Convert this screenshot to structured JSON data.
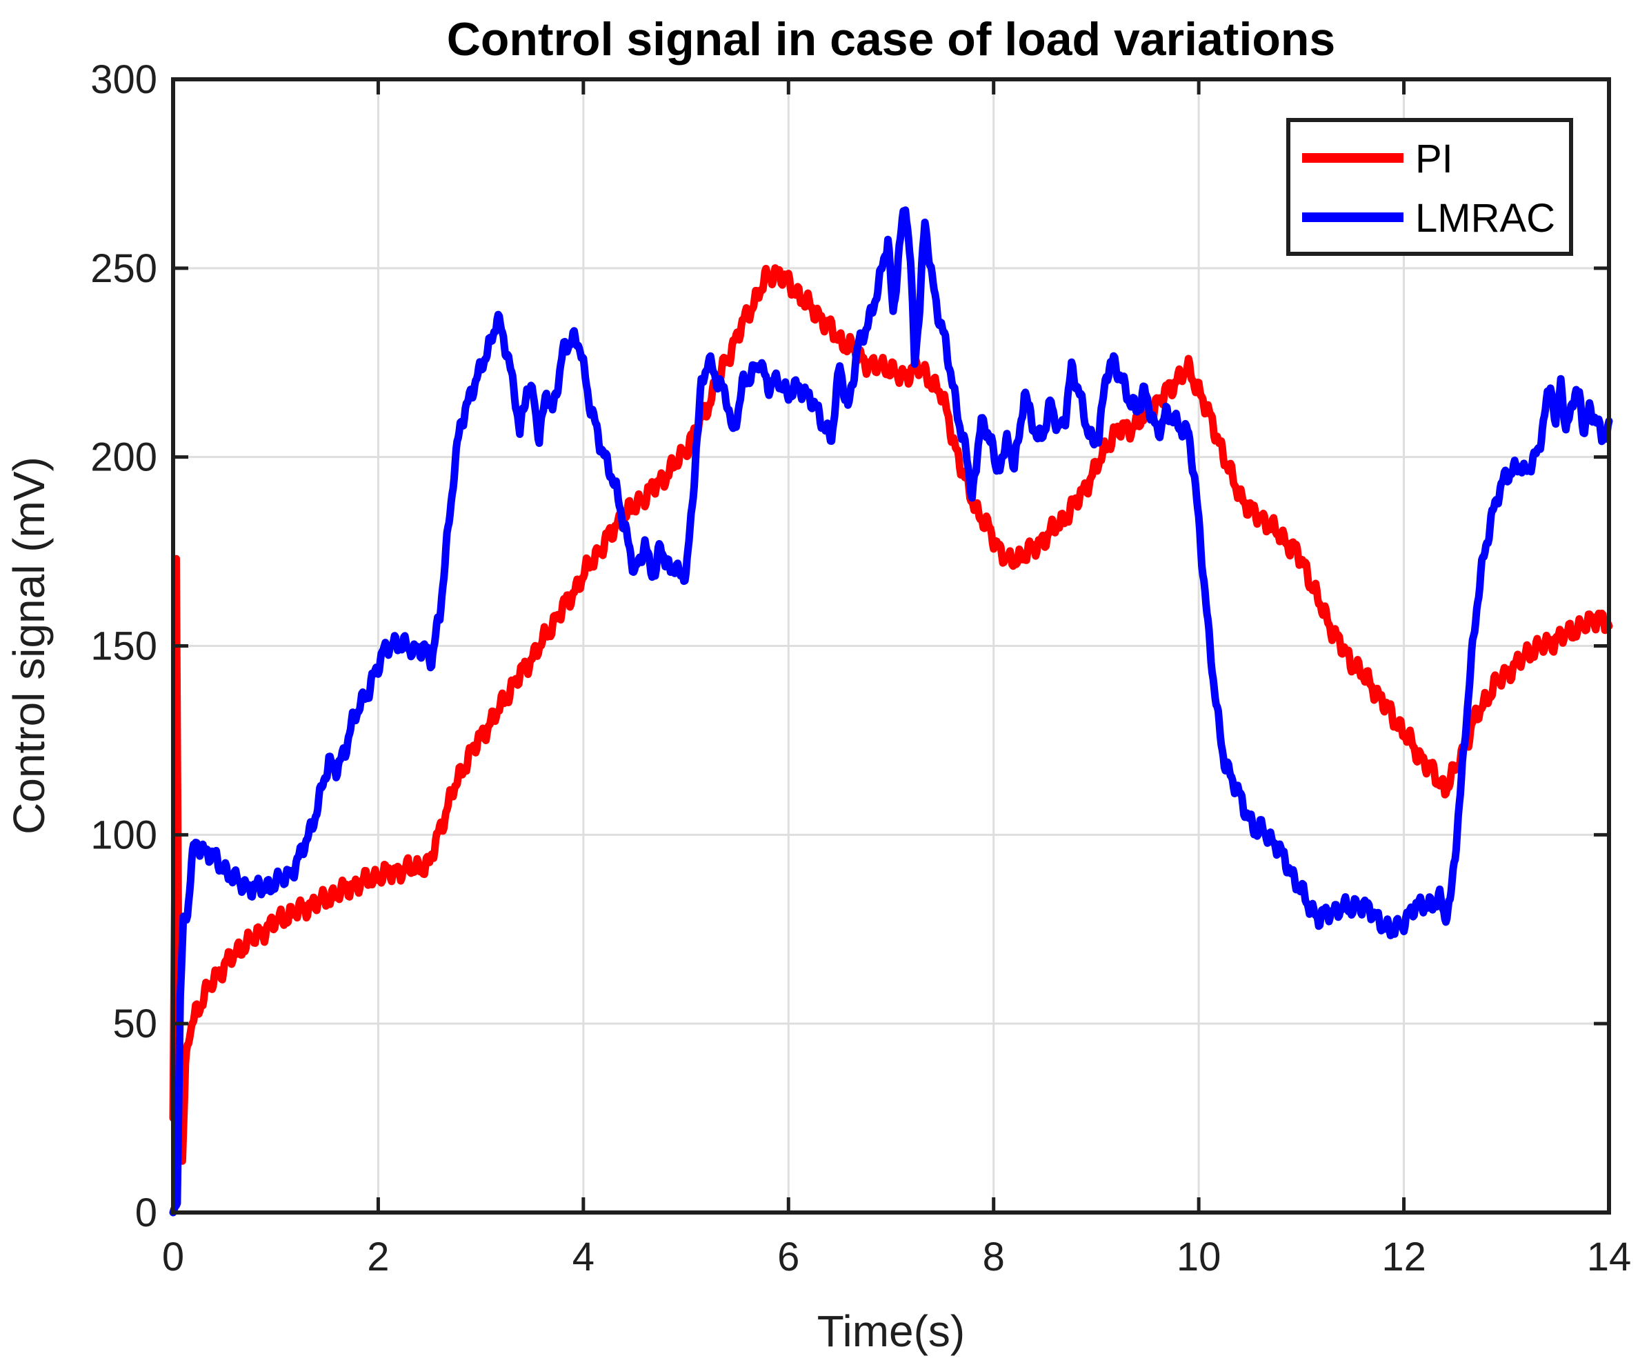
{
  "chart_data": {
    "type": "line",
    "title": "Control signal in case of load variations",
    "xlabel": "Time(s)",
    "ylabel": "Control signal (mV)",
    "xlim": [
      0,
      14
    ],
    "ylim": [
      0,
      300
    ],
    "xticks": [
      0,
      2,
      4,
      6,
      8,
      10,
      12,
      14
    ],
    "yticks": [
      0,
      50,
      100,
      150,
      200,
      250,
      300
    ],
    "grid": true,
    "legend": {
      "position": "northeast",
      "entries": [
        "PI",
        "LMRAC"
      ]
    },
    "colors": {
      "pi": "#ff0000",
      "lmrac": "#0000ff",
      "grid": "#dedede",
      "axis": "#1f1f1f",
      "background": "#ffffff"
    },
    "series": [
      {
        "name": "PI",
        "color": "#ff0000",
        "line_width": 11,
        "noise_amp": 3.2,
        "points": [
          [
            0.0,
            25
          ],
          [
            0.02,
            95
          ],
          [
            0.03,
            173
          ],
          [
            0.05,
            80
          ],
          [
            0.07,
            28
          ],
          [
            0.09,
            13
          ],
          [
            0.12,
            38
          ],
          [
            0.16,
            48
          ],
          [
            0.22,
            53
          ],
          [
            0.3,
            57
          ],
          [
            0.4,
            62
          ],
          [
            0.55,
            67
          ],
          [
            0.7,
            71
          ],
          [
            0.85,
            74
          ],
          [
            1.0,
            77
          ],
          [
            1.15,
            79
          ],
          [
            1.3,
            81
          ],
          [
            1.5,
            83
          ],
          [
            1.7,
            86
          ],
          [
            1.9,
            88
          ],
          [
            2.1,
            90
          ],
          [
            2.3,
            91
          ],
          [
            2.5,
            92
          ],
          [
            2.58,
            100
          ],
          [
            2.66,
            106
          ],
          [
            2.75,
            113
          ],
          [
            2.85,
            119
          ],
          [
            3.0,
            126
          ],
          [
            3.15,
            132
          ],
          [
            3.3,
            139
          ],
          [
            3.45,
            145
          ],
          [
            3.6,
            151
          ],
          [
            3.75,
            158
          ],
          [
            3.9,
            164
          ],
          [
            4.05,
            171
          ],
          [
            4.2,
            177
          ],
          [
            4.35,
            183
          ],
          [
            4.5,
            187
          ],
          [
            4.65,
            191
          ],
          [
            4.8,
            195
          ],
          [
            4.95,
            200
          ],
          [
            5.1,
            207
          ],
          [
            5.25,
            216
          ],
          [
            5.4,
            226
          ],
          [
            5.55,
            235
          ],
          [
            5.7,
            243
          ],
          [
            5.8,
            248
          ],
          [
            5.9,
            249
          ],
          [
            6.0,
            246
          ],
          [
            6.1,
            243
          ],
          [
            6.2,
            240
          ],
          [
            6.35,
            236
          ],
          [
            6.5,
            231
          ],
          [
            6.65,
            228
          ],
          [
            6.8,
            224
          ],
          [
            6.95,
            224
          ],
          [
            7.1,
            221
          ],
          [
            7.25,
            224
          ],
          [
            7.4,
            220
          ],
          [
            7.5,
            216
          ],
          [
            7.58,
            208
          ],
          [
            7.66,
            199
          ],
          [
            7.75,
            192
          ],
          [
            7.85,
            185
          ],
          [
            7.95,
            181
          ],
          [
            8.05,
            176
          ],
          [
            8.15,
            172
          ],
          [
            8.28,
            174
          ],
          [
            8.4,
            176
          ],
          [
            8.55,
            180
          ],
          [
            8.7,
            184
          ],
          [
            8.85,
            190
          ],
          [
            9.0,
            197
          ],
          [
            9.1,
            203
          ],
          [
            9.2,
            207
          ],
          [
            9.35,
            208
          ],
          [
            9.5,
            211
          ],
          [
            9.65,
            216
          ],
          [
            9.8,
            221
          ],
          [
            9.9,
            223
          ],
          [
            10.0,
            218
          ],
          [
            10.1,
            211
          ],
          [
            10.2,
            204
          ],
          [
            10.3,
            196
          ],
          [
            10.4,
            190
          ],
          [
            10.5,
            186
          ],
          [
            10.65,
            183
          ],
          [
            10.8,
            179
          ],
          [
            10.95,
            175
          ],
          [
            11.05,
            170
          ],
          [
            11.15,
            163
          ],
          [
            11.25,
            157
          ],
          [
            11.35,
            152
          ],
          [
            11.45,
            147
          ],
          [
            11.55,
            144
          ],
          [
            11.7,
            139
          ],
          [
            11.85,
            133
          ],
          [
            12.0,
            127
          ],
          [
            12.15,
            121
          ],
          [
            12.3,
            116
          ],
          [
            12.4,
            112
          ],
          [
            12.5,
            117
          ],
          [
            12.6,
            124
          ],
          [
            12.7,
            131
          ],
          [
            12.8,
            136
          ],
          [
            12.9,
            140
          ],
          [
            13.0,
            143
          ],
          [
            13.1,
            145
          ],
          [
            13.2,
            148
          ],
          [
            13.35,
            150
          ],
          [
            13.5,
            152
          ],
          [
            13.65,
            154
          ],
          [
            13.8,
            156
          ],
          [
            13.9,
            158
          ],
          [
            14.0,
            155
          ]
        ]
      },
      {
        "name": "LMRAC",
        "color": "#0000ff",
        "line_width": 11,
        "noise_amp": 3.0,
        "points": [
          [
            0.0,
            0
          ],
          [
            0.04,
            3
          ],
          [
            0.07,
            58
          ],
          [
            0.1,
            77
          ],
          [
            0.14,
            79
          ],
          [
            0.18,
            92
          ],
          [
            0.22,
            98
          ],
          [
            0.3,
            96
          ],
          [
            0.4,
            94
          ],
          [
            0.5,
            91
          ],
          [
            0.6,
            88
          ],
          [
            0.75,
            86
          ],
          [
            0.9,
            86
          ],
          [
            1.05,
            88
          ],
          [
            1.15,
            90
          ],
          [
            1.25,
            95
          ],
          [
            1.35,
            102
          ],
          [
            1.45,
            112
          ],
          [
            1.52,
            119
          ],
          [
            1.6,
            118
          ],
          [
            1.68,
            122
          ],
          [
            1.75,
            130
          ],
          [
            1.82,
            135
          ],
          [
            1.9,
            137
          ],
          [
            1.97,
            143
          ],
          [
            2.05,
            149
          ],
          [
            2.15,
            150
          ],
          [
            2.25,
            151
          ],
          [
            2.35,
            148
          ],
          [
            2.45,
            150
          ],
          [
            2.52,
            146
          ],
          [
            2.6,
            158
          ],
          [
            2.67,
            178
          ],
          [
            2.74,
            196
          ],
          [
            2.8,
            208
          ],
          [
            2.9,
            217
          ],
          [
            3.0,
            223
          ],
          [
            3.1,
            231
          ],
          [
            3.16,
            237
          ],
          [
            3.25,
            228
          ],
          [
            3.33,
            218
          ],
          [
            3.38,
            206
          ],
          [
            3.45,
            218
          ],
          [
            3.52,
            216
          ],
          [
            3.57,
            205
          ],
          [
            3.64,
            217
          ],
          [
            3.7,
            212
          ],
          [
            3.8,
            228
          ],
          [
            3.9,
            231
          ],
          [
            3.97,
            230
          ],
          [
            4.05,
            215
          ],
          [
            4.15,
            205
          ],
          [
            4.25,
            197
          ],
          [
            4.35,
            188
          ],
          [
            4.45,
            176
          ],
          [
            4.5,
            169
          ],
          [
            4.55,
            172
          ],
          [
            4.6,
            178
          ],
          [
            4.65,
            171
          ],
          [
            4.7,
            169
          ],
          [
            4.75,
            176
          ],
          [
            4.8,
            173
          ],
          [
            4.85,
            170
          ],
          [
            4.9,
            172
          ],
          [
            4.95,
            167
          ],
          [
            5.0,
            170
          ],
          [
            5.06,
            186
          ],
          [
            5.1,
            203
          ],
          [
            5.15,
            218
          ],
          [
            5.22,
            226
          ],
          [
            5.3,
            221
          ],
          [
            5.4,
            215
          ],
          [
            5.46,
            206
          ],
          [
            5.55,
            219
          ],
          [
            5.63,
            221
          ],
          [
            5.72,
            226
          ],
          [
            5.8,
            218
          ],
          [
            5.9,
            221
          ],
          [
            6.0,
            216
          ],
          [
            6.1,
            219
          ],
          [
            6.2,
            216
          ],
          [
            6.32,
            210
          ],
          [
            6.42,
            205
          ],
          [
            6.5,
            224
          ],
          [
            6.58,
            213
          ],
          [
            6.68,
            229
          ],
          [
            6.78,
            236
          ],
          [
            6.88,
            245
          ],
          [
            6.97,
            258
          ],
          [
            7.02,
            238
          ],
          [
            7.08,
            255
          ],
          [
            7.14,
            267
          ],
          [
            7.19,
            252
          ],
          [
            7.23,
            226
          ],
          [
            7.28,
            240
          ],
          [
            7.33,
            262
          ],
          [
            7.4,
            247
          ],
          [
            7.47,
            237
          ],
          [
            7.53,
            230
          ],
          [
            7.6,
            219
          ],
          [
            7.67,
            209
          ],
          [
            7.73,
            201
          ],
          [
            7.79,
            190
          ],
          [
            7.83,
            196
          ],
          [
            7.88,
            213
          ],
          [
            7.93,
            204
          ],
          [
            7.98,
            206
          ],
          [
            8.03,
            194
          ],
          [
            8.08,
            201
          ],
          [
            8.13,
            204
          ],
          [
            8.2,
            198
          ],
          [
            8.25,
            205
          ],
          [
            8.3,
            218
          ],
          [
            8.36,
            211
          ],
          [
            8.43,
            204
          ],
          [
            8.5,
            208
          ],
          [
            8.56,
            215
          ],
          [
            8.63,
            206
          ],
          [
            8.7,
            211
          ],
          [
            8.76,
            224
          ],
          [
            8.83,
            217
          ],
          [
            8.9,
            209
          ],
          [
            8.97,
            204
          ],
          [
            9.03,
            206
          ],
          [
            9.1,
            222
          ],
          [
            9.17,
            226
          ],
          [
            9.25,
            220
          ],
          [
            9.32,
            215
          ],
          [
            9.4,
            213
          ],
          [
            9.47,
            217
          ],
          [
            9.55,
            210
          ],
          [
            9.6,
            207
          ],
          [
            9.68,
            211
          ],
          [
            9.75,
            210
          ],
          [
            9.83,
            208
          ],
          [
            9.9,
            206
          ],
          [
            9.95,
            196
          ],
          [
            10.0,
            183
          ],
          [
            10.05,
            168
          ],
          [
            10.1,
            152
          ],
          [
            10.15,
            139
          ],
          [
            10.2,
            128
          ],
          [
            10.25,
            120
          ],
          [
            10.33,
            114
          ],
          [
            10.42,
            109
          ],
          [
            10.5,
            104
          ],
          [
            10.57,
            100
          ],
          [
            10.62,
            102
          ],
          [
            10.7,
            99
          ],
          [
            10.78,
            96
          ],
          [
            10.85,
            93
          ],
          [
            10.92,
            89
          ],
          [
            11.0,
            85
          ],
          [
            11.08,
            81
          ],
          [
            11.17,
            78
          ],
          [
            11.25,
            79
          ],
          [
            11.33,
            80
          ],
          [
            11.4,
            81
          ],
          [
            11.48,
            80
          ],
          [
            11.55,
            82
          ],
          [
            11.62,
            81
          ],
          [
            11.7,
            79
          ],
          [
            11.78,
            77
          ],
          [
            11.87,
            74
          ],
          [
            11.95,
            76
          ],
          [
            12.03,
            78
          ],
          [
            12.12,
            81
          ],
          [
            12.2,
            82
          ],
          [
            12.28,
            81
          ],
          [
            12.35,
            83
          ],
          [
            12.4,
            79
          ],
          [
            12.45,
            82
          ],
          [
            12.5,
            95
          ],
          [
            12.55,
            110
          ],
          [
            12.6,
            128
          ],
          [
            12.66,
            147
          ],
          [
            12.71,
            160
          ],
          [
            12.76,
            170
          ],
          [
            12.81,
            178
          ],
          [
            12.86,
            185
          ],
          [
            12.92,
            190
          ],
          [
            13.0,
            195
          ],
          [
            13.07,
            197
          ],
          [
            13.13,
            198
          ],
          [
            13.18,
            195
          ],
          [
            13.25,
            199
          ],
          [
            13.31,
            202
          ],
          [
            13.37,
            210
          ],
          [
            13.43,
            220
          ],
          [
            13.48,
            208
          ],
          [
            13.53,
            222
          ],
          [
            13.58,
            205
          ],
          [
            13.64,
            215
          ],
          [
            13.71,
            217
          ],
          [
            13.76,
            207
          ],
          [
            13.81,
            212
          ],
          [
            13.87,
            210
          ],
          [
            13.93,
            206
          ],
          [
            14.0,
            207
          ]
        ]
      }
    ]
  }
}
